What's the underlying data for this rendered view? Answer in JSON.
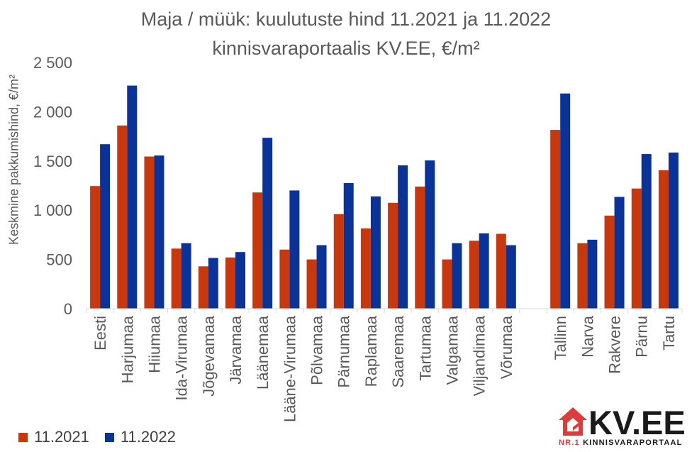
{
  "title_line1": "Maja / müük: kuulutuste hind 11.2021 ja 11.2022",
  "title_line2": "kinnisvaraportaalis KV.EE, €/m²",
  "logo": {
    "main": "KV.EE",
    "sub_prefix": "NR.1",
    "sub_rest": "KINNISVARAPORTAAL"
  },
  "colors": {
    "series_2021": "#c9380d",
    "series_2022": "#0a3399",
    "grid": "#d9d9d9",
    "axis_text": "#595959"
  },
  "chart_data": {
    "type": "bar",
    "title": "Maja / müük: kuulutuste hind 11.2021 ja 11.2022 kinnisvaraportaalis KV.EE, €/m²",
    "xlabel": "",
    "ylabel": "Keskmine pakkumishind, €/m²",
    "ylim": [
      0,
      2500
    ],
    "yticks": [
      0,
      500,
      1000,
      1500,
      2000,
      2500
    ],
    "ytick_labels": [
      "0",
      "500",
      "1 000",
      "1 500",
      "2 000",
      "2 500"
    ],
    "grid": false,
    "legend": "bottom-left",
    "categories": [
      "Eesti",
      "Harjumaa",
      "Hiiumaa",
      "Ida-Virumaa",
      "Jõgevamaa",
      "Järvamaa",
      "Läänemaa",
      "Lääne-Virumaa",
      "Põlvamaa",
      "Pärnumaa",
      "Raplamaa",
      "Saaremaa",
      "Tartumaa",
      "Valgamaa",
      "Viljandimaa",
      "Võrumaa",
      "",
      "Tallinn",
      "Narva",
      "Rakvere",
      "Pärnu",
      "Tartu"
    ],
    "series": [
      {
        "name": "11.2021",
        "values": [
          1245,
          1860,
          1545,
          610,
          430,
          520,
          1180,
          600,
          500,
          960,
          815,
          1075,
          1240,
          500,
          690,
          760,
          null,
          1815,
          665,
          945,
          1220,
          1405
        ]
      },
      {
        "name": "11.2022",
        "values": [
          1670,
          2265,
          1555,
          665,
          515,
          575,
          1735,
          1200,
          645,
          1275,
          1140,
          1455,
          1505,
          665,
          765,
          645,
          null,
          2185,
          700,
          1135,
          1570,
          1585
        ]
      }
    ]
  }
}
